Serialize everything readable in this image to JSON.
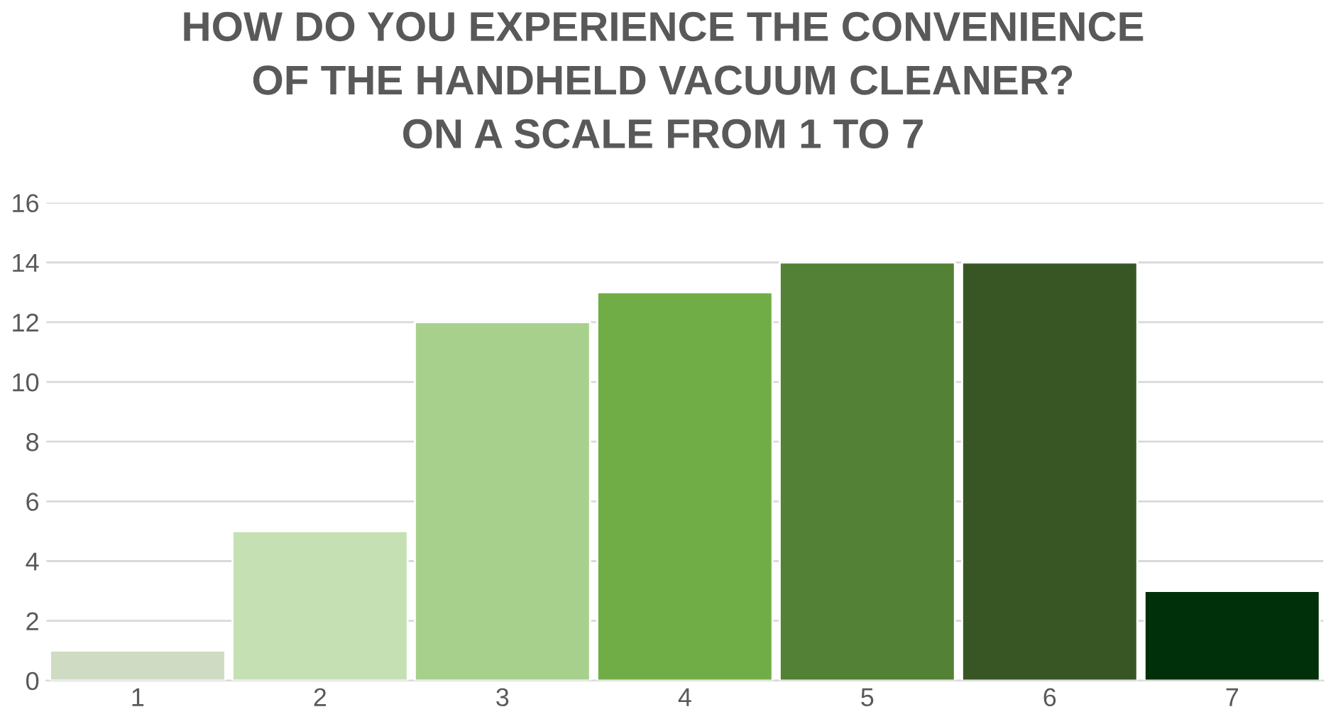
{
  "chart_data": {
    "type": "bar",
    "title": "HOW DO YOU EXPERIENCE THE CONVENIENCE\nOF THE HANDHELD VACUUM CLEANER?\nON A SCALE FROM 1 TO 7",
    "categories": [
      "1",
      "2",
      "3",
      "4",
      "5",
      "6",
      "7"
    ],
    "values": [
      1,
      5,
      12,
      13,
      14,
      14,
      3
    ],
    "colors": [
      "#cfdcc3",
      "#c5e0b3",
      "#a8d08d",
      "#70ad47",
      "#538135",
      "#375623",
      "#00300a"
    ],
    "ylim": [
      0,
      16
    ],
    "yticks": [
      0,
      2,
      4,
      6,
      8,
      10,
      12,
      14,
      16
    ],
    "grid": "y"
  }
}
